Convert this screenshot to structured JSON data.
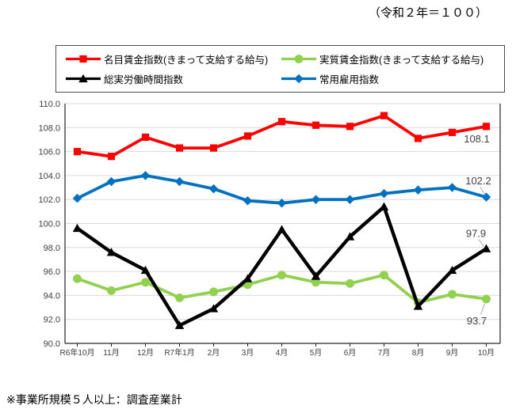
{
  "header": {
    "unit_note": "（令和２年＝１００）"
  },
  "legend": {
    "items": [
      {
        "label": "名目賃金指数(きまって支給する給与)",
        "color": "#FF0000",
        "marker": "square"
      },
      {
        "label": "実質賃金指数(きまって支給する給与)",
        "color": "#92D050",
        "marker": "circle"
      },
      {
        "label": "総実労働時間指数",
        "color": "#000000",
        "marker": "triangle"
      },
      {
        "label": "常用雇用指数",
        "color": "#0070C0",
        "marker": "diamond"
      }
    ]
  },
  "chart_data": {
    "type": "line",
    "title": "",
    "base_year_note": "（令和２年＝１００）",
    "categories": [
      "R6年10月",
      "11月",
      "12月",
      "R7年1月",
      "2月",
      "3月",
      "4月",
      "5月",
      "6月",
      "7月",
      "8月",
      "9月",
      "10月"
    ],
    "series": [
      {
        "name": "名目賃金指数(きまって支給する給与)",
        "color": "#FF0000",
        "marker": "square",
        "values": [
          106.0,
          105.6,
          107.2,
          106.3,
          106.3,
          107.3,
          108.5,
          108.2,
          108.1,
          109.0,
          107.1,
          107.6,
          108.1
        ]
      },
      {
        "name": "実質賃金指数(きまって支給する給与)",
        "color": "#92D050",
        "marker": "circle",
        "values": [
          95.4,
          94.4,
          95.1,
          93.8,
          94.3,
          94.9,
          95.7,
          95.1,
          95.0,
          95.7,
          93.4,
          94.1,
          93.7
        ]
      },
      {
        "name": "総実労働時間指数",
        "color": "#000000",
        "marker": "triangle",
        "values": [
          99.6,
          97.6,
          96.1,
          91.5,
          92.9,
          95.4,
          99.5,
          95.6,
          98.9,
          101.4,
          93.1,
          96.1,
          97.9
        ]
      },
      {
        "name": "常用雇用指数",
        "color": "#0070C0",
        "marker": "diamond",
        "values": [
          102.1,
          103.5,
          104.0,
          103.5,
          102.9,
          101.9,
          101.7,
          102.0,
          102.0,
          102.5,
          102.8,
          103.0,
          102.2
        ]
      }
    ],
    "ylim": [
      90.0,
      110.0
    ],
    "ytick_step": 2.0,
    "grid": true,
    "legend_position": "top",
    "end_labels": [
      {
        "series_index": 0,
        "series": "名目賃金指数(きまって支給する給与)",
        "text": "108.1"
      },
      {
        "series_index": 3,
        "series": "常用雇用指数",
        "text": "102.2"
      },
      {
        "series_index": 2,
        "series": "総実労働時間指数",
        "text": "97.9"
      },
      {
        "series_index": 1,
        "series": "実質賃金指数(きまって支給する給与)",
        "text": "93.7"
      }
    ]
  },
  "footer": {
    "note": "※事業所規模５人以上：調査産業計"
  }
}
